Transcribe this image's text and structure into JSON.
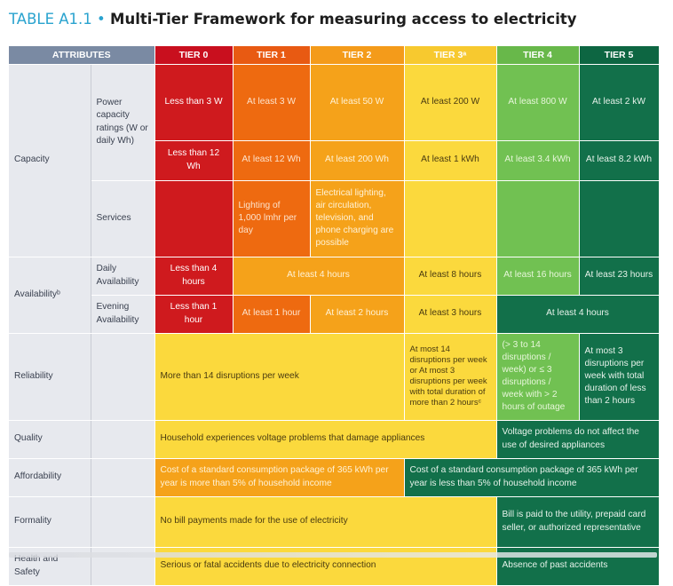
{
  "title": {
    "label": "TABLE A1.1",
    "separator": "•",
    "text": "Multi-Tier Framework for measuring access to electricity"
  },
  "header": {
    "attributes": "ATTRIBUTES",
    "tiers": [
      "TIER 0",
      "TIER 1",
      "TIER 2",
      "TIER 3ᵃ",
      "TIER 4",
      "TIER 5"
    ]
  },
  "colors": {
    "tier0": "#cf1a1e",
    "tier1": "#ee6a10",
    "tier2": "#f5a21a",
    "tier3": "#fbd93d",
    "tier4": "#71c152",
    "tier5": "#12704a",
    "header_attributes": "#7a8aa3"
  },
  "capacity": {
    "label": "Capacity",
    "power_label": "Power capacity ratings (W or daily Wh)",
    "power_w": [
      "Less than 3 W",
      "At least 3 W",
      "At least 50 W",
      "At least 200 W",
      "At least 800 W",
      "At least 2 kW"
    ],
    "power_wh": [
      "Less than 12 Wh",
      "At least 12 Wh",
      "At least 200 Wh",
      "At least 1 kWh",
      "At least 3.4 kWh",
      "At least 8.2 kWh"
    ],
    "services_label": "Services",
    "services_t1": "Lighting of 1,000 lmhr per day",
    "services_t2": "Electrical lighting, air circulation, television, and phone charging are possible"
  },
  "availability": {
    "label": "Availabilityᵇ",
    "daily_label": "Daily Availability",
    "daily_t0": "Less than 4 hours",
    "daily_t1_t2": "At least 4 hours",
    "daily_t3": "At least 8 hours",
    "daily_t4": "At least 16 hours",
    "daily_t5": "At least 23 hours",
    "evening_label": "Evening Availability",
    "evening_t0": "Less than 1 hour",
    "evening_t1": "At least 1 hour",
    "evening_t2": "At least 2 hours",
    "evening_t3": "At least 3 hours",
    "evening_t4_t5": "At least 4 hours"
  },
  "reliability": {
    "label": "Reliability",
    "t1_t2": "More than 14 disruptions per week",
    "t3": "At most 14 disruptions per week or At most 3 disruptions per week with total duration of more than 2 hoursᶜ",
    "t4": "(> 3 to 14 disruptions / week) or ≤ 3 disruptions / week with > 2 hours of outage",
    "t5": "At most 3 disruptions per week with total duration of less than 2 hours"
  },
  "quality": {
    "label": "Quality",
    "t1_t3": "Household experiences voltage problems that damage appliances",
    "t4_t5": "Voltage problems do not affect the use of desired appliances"
  },
  "affordability": {
    "label": "Affordability",
    "t1_t2": "Cost of a standard consumption package of 365 kWh per year is more than 5% of household income",
    "t3_t5": "Cost of a standard consumption package of 365 kWh per year is less than 5% of household income"
  },
  "formality": {
    "label": "Formality",
    "t1_t3": "No bill payments made for the use of electricity",
    "t4_t5": "Bill is paid to the utility, prepaid card seller, or authorized representative"
  },
  "health": {
    "label": "Health and Safety",
    "t1_t3": "Serious or fatal accidents due to electricity connection",
    "t4_t5": "Absence of past accidents"
  }
}
